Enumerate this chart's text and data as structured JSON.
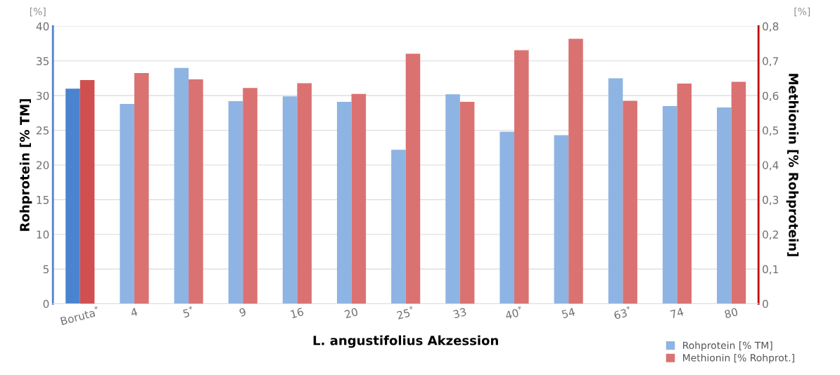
{
  "chart_data": {
    "type": "bar",
    "xlabel": "L. angustifolius Akzession",
    "ylabel": "Rohprotein [% TM]",
    "y2label": "Methionin [% Rohprotein]",
    "categories": [
      "Boruta$^{*}$",
      "4",
      "5$^{*}$",
      "9",
      "16",
      "20",
      "25$^{*}$",
      "33",
      "40$^{*}$",
      "54",
      "63$^{*}$",
      "74",
      "80"
    ],
    "series": [
      {
        "name": "Rohprotein [% TM]",
        "color": "#8eb4e3",
        "colors": [
          "#4a84d0",
          "#8eb4e3",
          "#8eb4e3",
          "#8eb4e3",
          "#8eb4e3",
          "#8eb4e3",
          "#8eb4e3",
          "#8eb4e3",
          "#8eb4e3",
          "#8eb4e3",
          "#8eb4e3",
          "#8eb4e3",
          "#8eb4e3"
        ],
        "values": [
          31.0,
          28.8,
          34.0,
          29.2,
          29.9,
          29.1,
          22.2,
          30.2,
          24.8,
          24.3,
          32.5,
          28.5,
          28.3
        ]
      },
      {
        "name": "Methionin [% Rohprot.]",
        "color": "#da7272",
        "axis": "y2",
        "colors": [
          "#d05050",
          "#da7272",
          "#da7272",
          "#da7272",
          "#da7272",
          "#da7272",
          "#da7272",
          "#da7272",
          "#da7272",
          "#da7272",
          "#da7272",
          "#da7272",
          "#da7272"
        ],
        "values": [
          0.645,
          0.665,
          0.647,
          0.622,
          0.636,
          0.605,
          0.721,
          0.582,
          0.731,
          0.764,
          0.585,
          0.635,
          0.64
        ]
      }
    ],
    "ylim": [
      0,
      40
    ],
    "yticks": [
      0,
      5,
      10,
      15,
      20,
      25,
      30,
      35,
      40
    ],
    "y2lim": [
      0,
      0.8
    ],
    "y2ticks": [
      {
        "value": 0,
        "label": "0"
      },
      {
        "value": 0.1,
        "label": "0,1"
      },
      {
        "value": 0.2,
        "label": "0,2"
      },
      {
        "value": 0.3,
        "label": "0,3"
      },
      {
        "value": 0.4,
        "label": "0,4"
      },
      {
        "value": 0.5,
        "label": "0,5"
      },
      {
        "value": 0.6,
        "label": "0,6"
      },
      {
        "value": 0.7,
        "label": "0,7"
      },
      {
        "value": 0.8,
        "label": "0,8"
      }
    ],
    "annotations": [
      "[%]",
      "[%]"
    ],
    "grid": "y",
    "legend": "bottom right"
  }
}
